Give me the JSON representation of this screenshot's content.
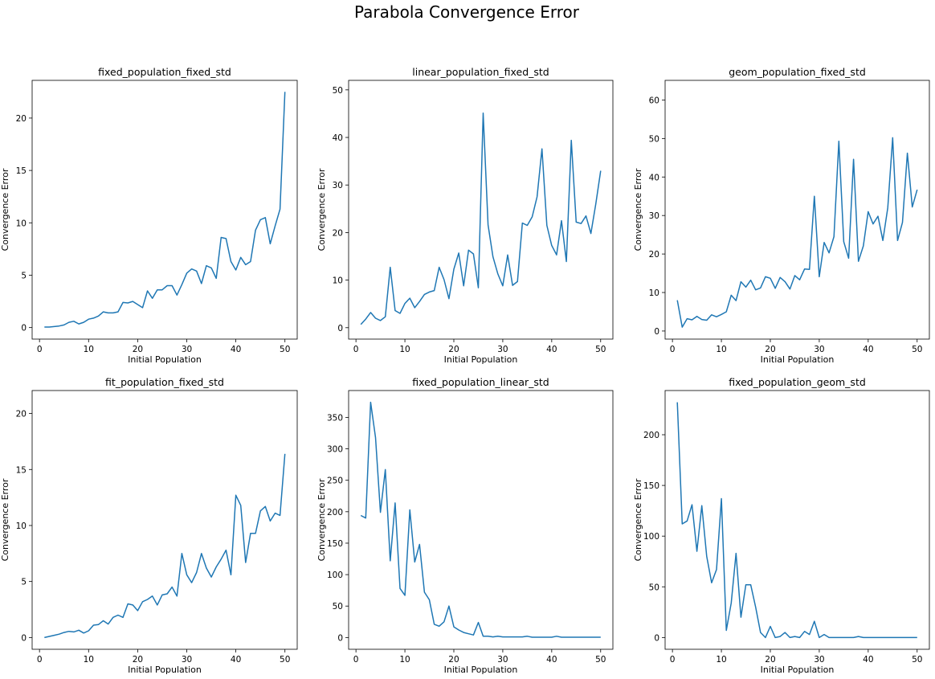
{
  "figure": {
    "title": "Parabola Convergence Error"
  },
  "colors": {
    "series": "#1f77b4",
    "axes": "#000000",
    "background": "#ffffff"
  },
  "chart_data": [
    {
      "type": "line",
      "title": "fixed_population_fixed_std",
      "xlabel": "Initial Population",
      "ylabel": "Convergence Error",
      "xlim": [
        -1.5,
        52.5
      ],
      "ylim": [
        -1.1,
        23.6
      ],
      "xticks": [
        0,
        10,
        20,
        30,
        40,
        50
      ],
      "yticks": [
        0,
        5,
        10,
        15,
        20
      ],
      "x": [
        1,
        2,
        3,
        4,
        5,
        6,
        7,
        8,
        9,
        10,
        11,
        12,
        13,
        14,
        15,
        16,
        17,
        18,
        19,
        20,
        21,
        22,
        23,
        24,
        25,
        26,
        27,
        28,
        29,
        30,
        31,
        32,
        33,
        34,
        35,
        36,
        37,
        38,
        39,
        40,
        41,
        42,
        43,
        44,
        45,
        46,
        47,
        48,
        49,
        50
      ],
      "y": [
        0.05,
        0.05,
        0.1,
        0.15,
        0.25,
        0.5,
        0.6,
        0.35,
        0.5,
        0.8,
        0.9,
        1.1,
        1.5,
        1.4,
        1.4,
        1.5,
        2.4,
        2.35,
        2.5,
        2.2,
        1.9,
        3.5,
        2.8,
        3.6,
        3.6,
        4.0,
        4.0,
        3.1,
        4.1,
        5.2,
        5.6,
        5.4,
        4.2,
        5.9,
        5.7,
        4.7,
        8.6,
        8.5,
        6.3,
        5.5,
        6.7,
        6.0,
        6.3,
        9.3,
        10.3,
        10.5,
        8.0,
        9.7,
        11.3,
        22.5
      ]
    },
    {
      "type": "line",
      "title": "linear_population_fixed_std",
      "xlabel": "Initial Population",
      "ylabel": "Convergence Error",
      "xlim": [
        -1.5,
        52.5
      ],
      "ylim": [
        -2.4,
        52.0
      ],
      "xticks": [
        0,
        10,
        20,
        30,
        40,
        50
      ],
      "yticks": [
        0,
        10,
        20,
        30,
        40,
        50
      ],
      "x": [
        1,
        2,
        3,
        4,
        5,
        6,
        7,
        8,
        9,
        10,
        11,
        12,
        13,
        14,
        15,
        16,
        17,
        18,
        19,
        20,
        21,
        22,
        23,
        24,
        25,
        26,
        27,
        28,
        29,
        30,
        31,
        32,
        33,
        34,
        35,
        36,
        37,
        38,
        39,
        40,
        41,
        42,
        43,
        44,
        45,
        46,
        47,
        48,
        49,
        50
      ],
      "y": [
        0.7,
        1.8,
        3.2,
        2.0,
        1.5,
        2.3,
        12.7,
        3.6,
        3.0,
        5.1,
        6.2,
        4.2,
        5.5,
        7.0,
        7.5,
        7.8,
        12.7,
        10.1,
        6.1,
        12.3,
        15.7,
        8.8,
        16.3,
        15.5,
        8.4,
        45.1,
        21.6,
        14.9,
        11.3,
        8.8,
        15.3,
        8.9,
        9.7,
        22.0,
        21.5,
        23.3,
        27.5,
        37.6,
        21.5,
        17.3,
        15.3,
        22.5,
        13.9,
        39.4,
        22.2,
        21.9,
        23.5,
        19.8,
        26.0,
        33.0
      ]
    },
    {
      "type": "line",
      "title": "geom_population_fixed_std",
      "xlabel": "Initial Population",
      "ylabel": "Convergence Error",
      "xlim": [
        -1.5,
        52.5
      ],
      "ylim": [
        -2.1,
        65.1
      ],
      "xticks": [
        0,
        10,
        20,
        30,
        40,
        50
      ],
      "yticks": [
        0,
        10,
        20,
        30,
        40,
        50,
        60
      ],
      "x": [
        1,
        2,
        3,
        4,
        5,
        6,
        7,
        8,
        9,
        10,
        11,
        12,
        13,
        14,
        15,
        16,
        17,
        18,
        19,
        20,
        21,
        22,
        23,
        24,
        25,
        26,
        27,
        28,
        29,
        30,
        31,
        32,
        33,
        34,
        35,
        36,
        37,
        38,
        39,
        40,
        41,
        42,
        43,
        44,
        45,
        46,
        47,
        48,
        49,
        50
      ],
      "y": [
        8.0,
        1.0,
        3.2,
        2.9,
        3.8,
        3.0,
        2.8,
        4.2,
        3.7,
        4.3,
        5.0,
        9.3,
        7.9,
        12.8,
        11.4,
        13.2,
        10.7,
        11.2,
        14.1,
        13.7,
        11.1,
        13.9,
        12.8,
        10.9,
        14.4,
        13.3,
        16.1,
        16.0,
        35.0,
        14.1,
        23.0,
        20.3,
        24.5,
        49.3,
        23.2,
        18.9,
        44.6,
        18.1,
        22.1,
        31.0,
        27.8,
        29.8,
        23.5,
        32.0,
        50.2,
        23.5,
        28.2,
        46.2,
        32.2,
        36.7
      ]
    },
    {
      "type": "line",
      "title": "fit_population_fixed_std",
      "xlabel": "Initial Population",
      "ylabel": "Convergence Error",
      "xlim": [
        -1.5,
        52.5
      ],
      "ylim": [
        -1.05,
        22.05
      ],
      "xticks": [
        0,
        10,
        20,
        30,
        40,
        50
      ],
      "yticks": [
        0,
        5,
        10,
        15,
        20
      ],
      "x": [
        1,
        2,
        3,
        4,
        5,
        6,
        7,
        8,
        9,
        10,
        11,
        12,
        13,
        14,
        15,
        16,
        17,
        18,
        19,
        20,
        21,
        22,
        23,
        24,
        25,
        26,
        27,
        28,
        29,
        30,
        31,
        32,
        33,
        34,
        35,
        36,
        37,
        38,
        39,
        40,
        41,
        42,
        43,
        44,
        45,
        46,
        47,
        48,
        49,
        50
      ],
      "y": [
        0.0,
        0.1,
        0.2,
        0.3,
        0.45,
        0.55,
        0.5,
        0.65,
        0.4,
        0.6,
        1.1,
        1.15,
        1.5,
        1.2,
        1.8,
        2.0,
        1.8,
        3.0,
        2.9,
        2.4,
        3.2,
        3.4,
        3.7,
        2.9,
        3.8,
        3.9,
        4.5,
        3.7,
        7.5,
        5.6,
        4.9,
        5.8,
        7.5,
        6.2,
        5.4,
        6.3,
        7.0,
        7.8,
        5.6,
        12.7,
        11.8,
        6.7,
        9.3,
        9.3,
        11.3,
        11.7,
        10.4,
        11.1,
        10.9,
        16.4
      ]
    },
    {
      "type": "line",
      "title": "fixed_population_linear_std",
      "xlabel": "Initial Population",
      "ylabel": "Convergence Error",
      "xlim": [
        -1.5,
        52.5
      ],
      "ylim": [
        -18.7,
        392.7
      ],
      "xticks": [
        0,
        10,
        20,
        30,
        40,
        50
      ],
      "yticks": [
        0,
        50,
        100,
        150,
        200,
        250,
        300,
        350
      ],
      "x": [
        1,
        2,
        3,
        4,
        5,
        6,
        7,
        8,
        9,
        10,
        11,
        12,
        13,
        14,
        15,
        16,
        17,
        18,
        19,
        20,
        21,
        22,
        23,
        24,
        25,
        26,
        27,
        28,
        29,
        30,
        31,
        32,
        33,
        34,
        35,
        36,
        37,
        38,
        39,
        40,
        41,
        42,
        43,
        44,
        45,
        46,
        47,
        48,
        49,
        50
      ],
      "y": [
        194,
        190,
        374,
        318,
        199,
        267,
        122,
        214,
        78,
        67,
        203,
        120,
        148,
        72,
        60,
        21,
        18,
        25,
        50,
        17,
        12,
        8,
        6,
        4,
        24,
        2,
        2,
        1,
        2,
        1,
        1,
        1,
        1,
        1,
        2,
        0.5,
        0.5,
        0.5,
        0.5,
        0.5,
        2,
        0.5,
        0.5,
        0.5,
        0.5,
        0.5,
        0.5,
        0.5,
        0.5,
        0.5
      ]
    },
    {
      "type": "line",
      "title": "fixed_population_geom_std",
      "xlabel": "Initial Population",
      "ylabel": "Convergence Error",
      "xlim": [
        -1.5,
        52.5
      ],
      "ylim": [
        -11.6,
        243.6
      ],
      "xticks": [
        0,
        10,
        20,
        30,
        40,
        50
      ],
      "yticks": [
        0,
        50,
        100,
        150,
        200
      ],
      "x": [
        1,
        2,
        3,
        4,
        5,
        6,
        7,
        8,
        9,
        10,
        11,
        12,
        13,
        14,
        15,
        16,
        17,
        18,
        19,
        20,
        21,
        22,
        23,
        24,
        25,
        26,
        27,
        28,
        29,
        30,
        31,
        32,
        33,
        34,
        35,
        36,
        37,
        38,
        39,
        40,
        41,
        42,
        43,
        44,
        45,
        46,
        47,
        48,
        49,
        50
      ],
      "y": [
        232,
        112,
        115,
        131,
        85,
        130,
        80,
        54,
        67,
        137,
        7,
        34,
        83,
        20,
        52,
        52,
        30,
        5,
        0,
        11,
        0,
        1,
        5,
        0,
        1,
        0,
        6,
        3,
        16,
        0,
        3,
        0,
        0,
        0,
        0,
        0,
        0,
        1,
        0,
        0,
        0,
        0,
        0,
        0,
        0,
        0,
        0,
        0,
        0,
        0
      ]
    }
  ]
}
